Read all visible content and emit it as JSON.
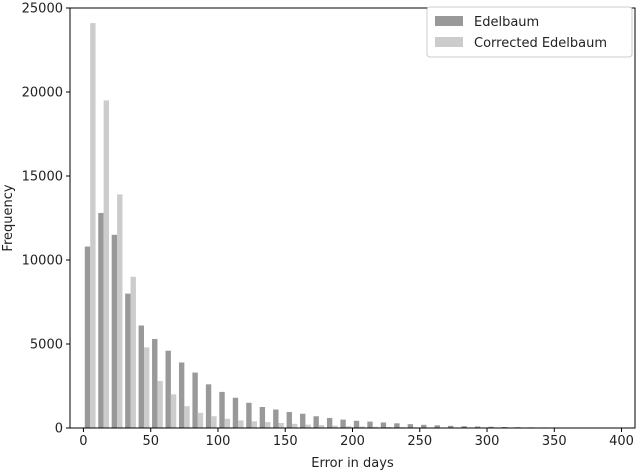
{
  "chart_data": {
    "type": "bar",
    "title": "",
    "xlabel": "Error in days",
    "ylabel": "Frequency",
    "xlim": [
      -10,
      410
    ],
    "ylim": [
      0,
      25000
    ],
    "xticks": [
      0,
      50,
      100,
      150,
      200,
      250,
      300,
      350,
      400
    ],
    "yticks": [
      0,
      5000,
      10000,
      15000,
      20000,
      25000
    ],
    "grid": false,
    "legend_position": "upper-right",
    "bin_width": 10,
    "bin_centers": [
      5,
      15,
      25,
      35,
      45,
      55,
      65,
      75,
      85,
      95,
      105,
      115,
      125,
      135,
      145,
      155,
      165,
      175,
      185,
      195,
      205,
      215,
      225,
      235,
      245,
      255,
      265,
      275,
      285,
      295,
      305,
      315,
      325,
      335,
      345,
      355,
      365,
      375,
      385,
      395
    ],
    "series": [
      {
        "name": "Edelbaum",
        "color": "#999999",
        "values": [
          10800,
          12800,
          11500,
          8000,
          6100,
          5300,
          4600,
          3900,
          3300,
          2600,
          2150,
          1800,
          1500,
          1250,
          1100,
          950,
          850,
          700,
          600,
          500,
          430,
          380,
          330,
          280,
          230,
          190,
          160,
          130,
          110,
          90,
          75,
          60,
          50,
          40,
          35,
          30,
          25,
          20,
          15,
          10
        ]
      },
      {
        "name": "Corrected Edelbaum",
        "color": "#cccccc",
        "values": [
          24100,
          19500,
          13900,
          9000,
          4800,
          2800,
          2000,
          1300,
          900,
          700,
          550,
          450,
          400,
          350,
          300,
          250,
          200,
          170,
          140,
          110,
          90,
          70,
          60,
          50,
          40,
          30,
          25,
          20,
          15,
          12,
          10,
          8,
          6,
          5,
          4,
          3,
          2,
          2,
          1,
          1
        ]
      }
    ]
  }
}
